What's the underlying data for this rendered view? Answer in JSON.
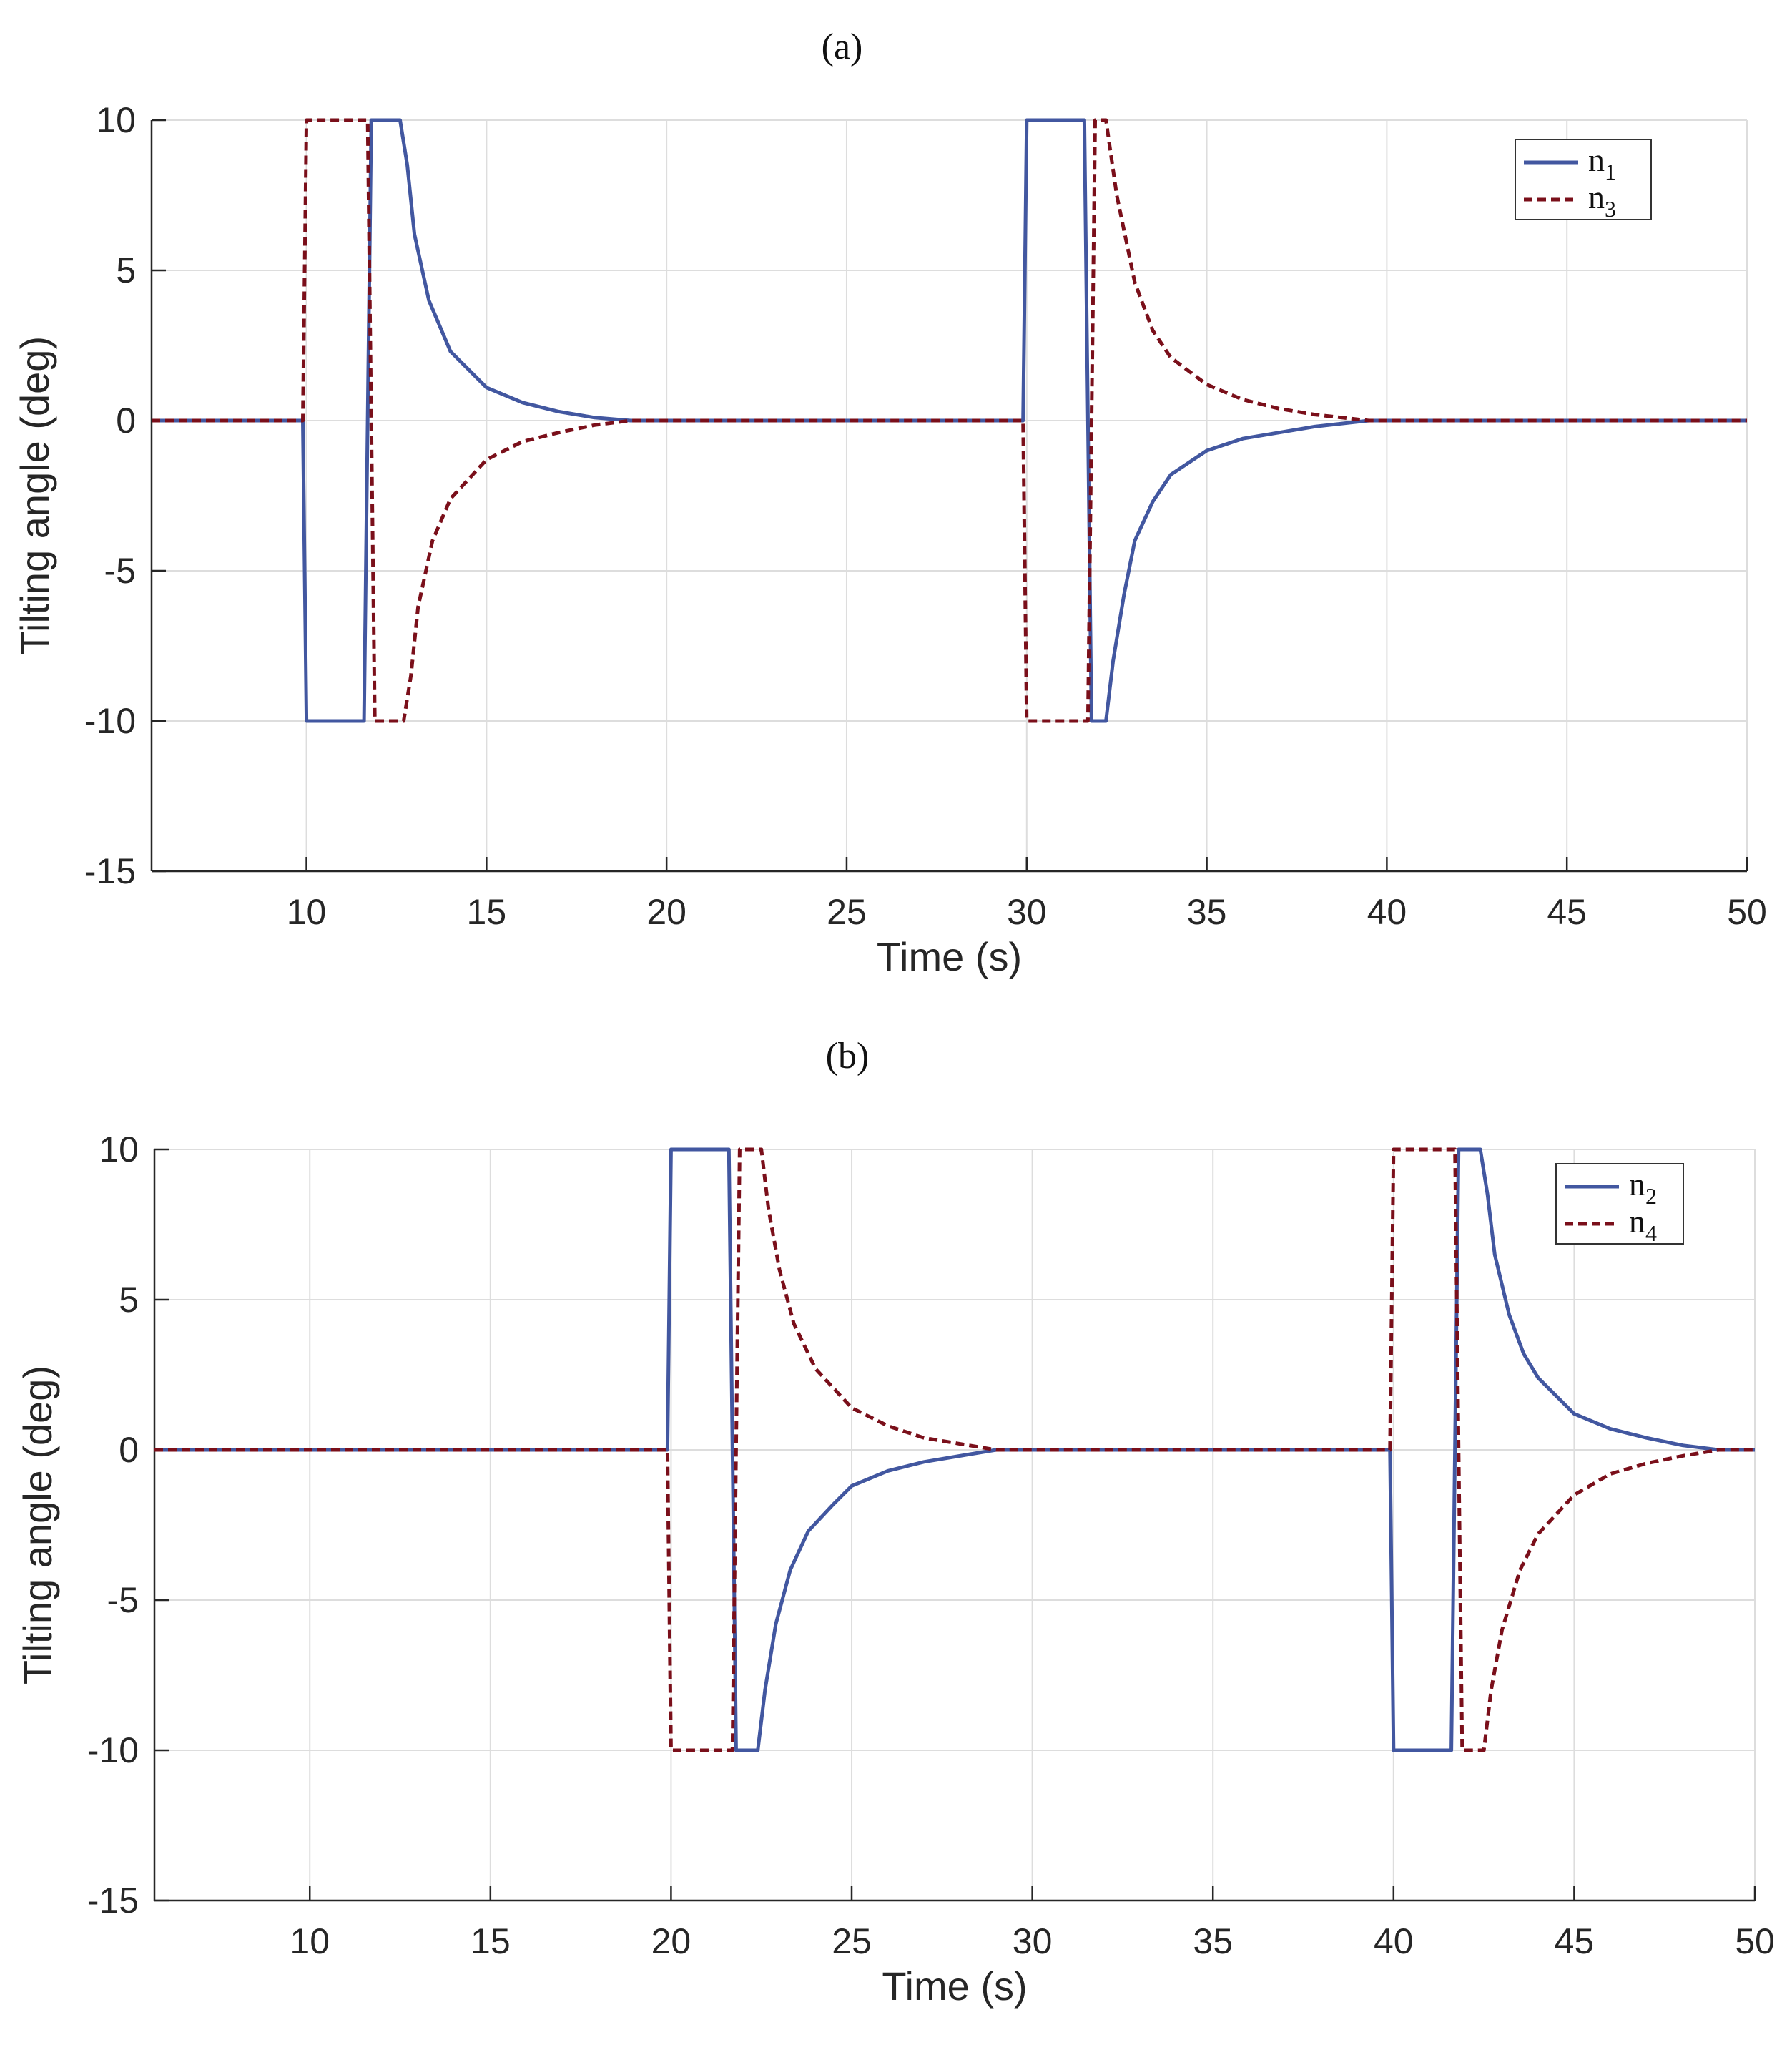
{
  "colors": {
    "n_solid": "#4257a0",
    "n_dashed": "#7a0f1a",
    "grid": "#dddddd",
    "axis": "#262626",
    "legend_border": "#333333"
  },
  "chart_data": [
    {
      "type": "line",
      "panel_label": "(a)",
      "xlabel": "Time (s)",
      "ylabel": "Tilting angle (deg)",
      "xlim": [
        5.7,
        50
      ],
      "ylim": [
        -15,
        10
      ],
      "xticks": [
        10,
        15,
        20,
        25,
        30,
        35,
        40,
        45,
        50
      ],
      "yticks": [
        10,
        5,
        0,
        -5,
        -10,
        -15
      ],
      "xtick_labels": [
        "10",
        "15",
        "20",
        "25",
        "30",
        "35",
        "40",
        "45",
        "50"
      ],
      "ytick_labels": [
        "10",
        "5",
        "0",
        "-5",
        "-10",
        "-15"
      ],
      "grid": true,
      "legend_position": "top-right",
      "series": [
        {
          "name": "n1",
          "legend_base": "n",
          "legend_sub": "1",
          "style": "solid",
          "color": "#4257a0",
          "points": [
            [
              5.7,
              0
            ],
            [
              9.9,
              0
            ],
            [
              10.0,
              -10
            ],
            [
              11.6,
              -10
            ],
            [
              11.8,
              10
            ],
            [
              12.6,
              10
            ],
            [
              12.8,
              8.5
            ],
            [
              13.0,
              6.2
            ],
            [
              13.4,
              4.0
            ],
            [
              14.0,
              2.3
            ],
            [
              15.0,
              1.1
            ],
            [
              16.0,
              0.6
            ],
            [
              17.0,
              0.3
            ],
            [
              18.0,
              0.1
            ],
            [
              19.0,
              0
            ],
            [
              29.9,
              0
            ],
            [
              30.0,
              10
            ],
            [
              31.6,
              10
            ],
            [
              31.8,
              -10
            ],
            [
              32.2,
              -10
            ],
            [
              32.4,
              -8.0
            ],
            [
              32.7,
              -5.8
            ],
            [
              33.0,
              -4.0
            ],
            [
              33.5,
              -2.7
            ],
            [
              34.0,
              -1.8
            ],
            [
              35.0,
              -1.0
            ],
            [
              36.0,
              -0.6
            ],
            [
              37.0,
              -0.4
            ],
            [
              38.0,
              -0.2
            ],
            [
              39.5,
              0
            ],
            [
              50,
              0
            ]
          ]
        },
        {
          "name": "n3",
          "legend_base": "n",
          "legend_sub": "3",
          "style": "dashed",
          "color": "#7a0f1a",
          "points": [
            [
              5.7,
              0
            ],
            [
              9.9,
              0
            ],
            [
              10.0,
              10
            ],
            [
              11.7,
              10
            ],
            [
              11.9,
              -10
            ],
            [
              12.7,
              -10
            ],
            [
              12.9,
              -8.5
            ],
            [
              13.1,
              -6.2
            ],
            [
              13.5,
              -4.0
            ],
            [
              14.0,
              -2.6
            ],
            [
              15.0,
              -1.3
            ],
            [
              16.0,
              -0.7
            ],
            [
              17.0,
              -0.4
            ],
            [
              18.0,
              -0.15
            ],
            [
              19.0,
              0
            ],
            [
              29.9,
              0
            ],
            [
              30.0,
              -10
            ],
            [
              31.7,
              -10
            ],
            [
              31.9,
              10
            ],
            [
              32.2,
              10
            ],
            [
              32.5,
              7.5
            ],
            [
              33.0,
              4.6
            ],
            [
              33.5,
              3.0
            ],
            [
              34.0,
              2.1
            ],
            [
              35.0,
              1.2
            ],
            [
              36.0,
              0.7
            ],
            [
              37.0,
              0.4
            ],
            [
              38.0,
              0.2
            ],
            [
              39.5,
              0
            ],
            [
              50,
              0
            ]
          ]
        }
      ]
    },
    {
      "type": "line",
      "panel_label": "(b)",
      "xlabel": "Time (s)",
      "ylabel": "Tilting angle (deg)",
      "xlim": [
        5.7,
        50
      ],
      "ylim": [
        -15,
        10
      ],
      "xticks": [
        10,
        15,
        20,
        25,
        30,
        35,
        40,
        45,
        50
      ],
      "yticks": [
        10,
        5,
        0,
        -5,
        -10,
        -15
      ],
      "xtick_labels": [
        "10",
        "15",
        "20",
        "25",
        "30",
        "35",
        "40",
        "45",
        "50"
      ],
      "ytick_labels": [
        "10",
        "5",
        "0",
        "-5",
        "-10",
        "-15"
      ],
      "grid": true,
      "legend_position": "top-right",
      "series": [
        {
          "name": "n2",
          "legend_base": "n",
          "legend_sub": "2",
          "style": "solid",
          "color": "#4257a0",
          "points": [
            [
              5.7,
              0
            ],
            [
              19.9,
              0
            ],
            [
              20.0,
              10
            ],
            [
              21.6,
              10
            ],
            [
              21.8,
              -10
            ],
            [
              22.4,
              -10
            ],
            [
              22.6,
              -8.0
            ],
            [
              22.9,
              -5.8
            ],
            [
              23.3,
              -4.0
            ],
            [
              23.8,
              -2.7
            ],
            [
              24.5,
              -1.8
            ],
            [
              25.0,
              -1.2
            ],
            [
              26.0,
              -0.7
            ],
            [
              27.0,
              -0.4
            ],
            [
              28.0,
              -0.2
            ],
            [
              29.0,
              0
            ],
            [
              39.9,
              0
            ],
            [
              40.0,
              -10
            ],
            [
              41.6,
              -10
            ],
            [
              41.8,
              10
            ],
            [
              42.4,
              10
            ],
            [
              42.6,
              8.5
            ],
            [
              42.8,
              6.5
            ],
            [
              43.2,
              4.5
            ],
            [
              43.6,
              3.2
            ],
            [
              44.0,
              2.4
            ],
            [
              45.0,
              1.2
            ],
            [
              46.0,
              0.7
            ],
            [
              47.0,
              0.4
            ],
            [
              48.0,
              0.15
            ],
            [
              49.0,
              0
            ],
            [
              50,
              0
            ]
          ]
        },
        {
          "name": "n4",
          "legend_base": "n",
          "legend_sub": "4",
          "style": "dashed",
          "color": "#7a0f1a",
          "points": [
            [
              5.7,
              0
            ],
            [
              19.9,
              0
            ],
            [
              20.0,
              -10
            ],
            [
              21.7,
              -10
            ],
            [
              21.9,
              10
            ],
            [
              22.5,
              10
            ],
            [
              22.7,
              8.0
            ],
            [
              23.0,
              6.0
            ],
            [
              23.4,
              4.2
            ],
            [
              24.0,
              2.7
            ],
            [
              25.0,
              1.4
            ],
            [
              26.0,
              0.8
            ],
            [
              27.0,
              0.4
            ],
            [
              28.0,
              0.2
            ],
            [
              29.0,
              0
            ],
            [
              39.9,
              0
            ],
            [
              40.0,
              10
            ],
            [
              41.7,
              10
            ],
            [
              41.9,
              -10
            ],
            [
              42.5,
              -10
            ],
            [
              42.7,
              -8.0
            ],
            [
              43.0,
              -6.0
            ],
            [
              43.5,
              -4.0
            ],
            [
              44.0,
              -2.8
            ],
            [
              45.0,
              -1.5
            ],
            [
              46.0,
              -0.8
            ],
            [
              47.0,
              -0.45
            ],
            [
              48.0,
              -0.2
            ],
            [
              49.0,
              0
            ],
            [
              50,
              0
            ]
          ]
        }
      ]
    }
  ]
}
